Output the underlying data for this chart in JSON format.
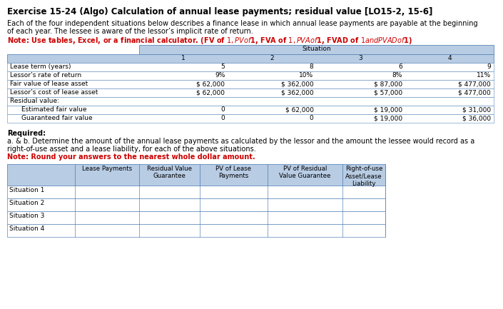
{
  "title": "Exercise 15-24 (Algo) Calculation of annual lease payments; residual value [LO15-2, 15-6]",
  "intro_line1": "Each of the four independent situations below describes a finance lease in which annual lease payments are payable at the beginning",
  "intro_line2": "of each year. The lessee is aware of the lessor’s implicit rate of return.",
  "note_text": "Note: Use tables, Excel, or a financial calculator. (FV of $1, PV of $1, FVA of $1, PVA of $1, FVAD of $1 and PVAD of $1)",
  "situation_header": "Situation",
  "situation_nums": [
    "1",
    "2",
    "3",
    "4"
  ],
  "row_labels": [
    "Lease term (years)",
    "Lessor’s rate of return",
    "Fair value of lease asset",
    "Lessor’s cost of lease asset",
    "Residual value:",
    "  Estimated fair value",
    "  Guaranteed fair value"
  ],
  "row_indent": [
    false,
    false,
    false,
    false,
    false,
    true,
    true
  ],
  "table1_data": [
    [
      "5",
      "8",
      "6",
      "9"
    ],
    [
      "9%",
      "10%",
      "8%",
      "11%"
    ],
    [
      "$ 62,000",
      "$ 362,000",
      "$ 87,000",
      "$ 477,000"
    ],
    [
      "$ 62,000",
      "$ 362,000",
      "$ 57,000",
      "$ 477,000"
    ],
    [
      "",
      "",
      "",
      ""
    ],
    [
      "0",
      "$ 62,000",
      "$ 19,000",
      "$ 31,000"
    ],
    [
      "0",
      "0",
      "$ 19,000",
      "$ 36,000"
    ]
  ],
  "required_text": "Required:",
  "req_line1": "a. & b. Determine the amount of the annual lease payments as calculated by the lessor and the amount the lessee would record as a",
  "req_line2": "right-of-use asset and a lease liability, for each of the above situations.",
  "req_note": "Note: Round your answers to the nearest whole dollar amount.",
  "table2_col_headers": [
    "Lease Payments",
    "Residual Value\nGuarantee",
    "PV of Lease\nPayments",
    "PV of Residual\nValue Guarantee",
    "Right-of-use\nAsset/Lease\nLiability"
  ],
  "table2_row_labels": [
    "Situation 1",
    "Situation 2",
    "Situation 3",
    "Situation 4"
  ],
  "header_bg": "#b8cce4",
  "table_border": "#5b87b8",
  "bg_color": "#ffffff",
  "title_color": "#000000",
  "note_color": "#cc0000",
  "text_color": "#000000",
  "title_fs": 8.5,
  "body_fs": 7.0,
  "table_fs": 6.5
}
